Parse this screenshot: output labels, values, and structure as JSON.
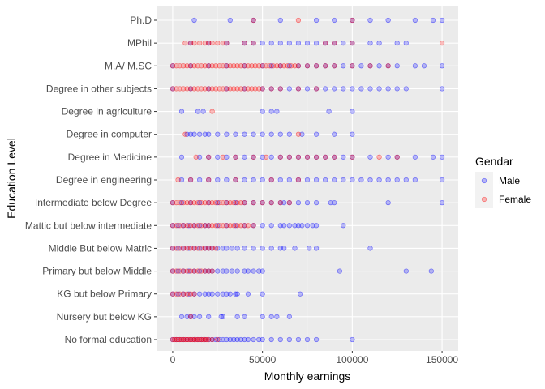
{
  "chart_data": {
    "type": "scatter",
    "title": "",
    "xlabel": "Monthly earnings",
    "ylabel": "Education Level",
    "xlim": [
      -9000,
      159000
    ],
    "x_ticks": [
      0,
      50000,
      100000,
      150000
    ],
    "x_tick_labels": [
      "0",
      "50000",
      "100000",
      "150000"
    ],
    "grid": true,
    "legend_title": "Gendar",
    "legend_position": "right",
    "categories": [
      "No formal education",
      "Nursery but below KG",
      "KG but below Primary",
      "Primary but below Middle",
      "Middle But below Matric",
      "Mattic but below intermediate",
      "Intermediate below Degree",
      "Degree in engineering",
      "Degree in Medicine",
      "Degree in computer",
      "Degree in agriculture",
      "Degree in other subjects",
      "M.A/ M.SC",
      "MPhil",
      "Ph.D"
    ],
    "series": [
      {
        "name": "Male",
        "color": "#0000ff",
        "points": {
          "No formal education": [
            0,
            2000,
            4000,
            6000,
            8000,
            10000,
            12000,
            14000,
            16000,
            18000,
            20000,
            22000,
            24000,
            26000,
            28000,
            30000,
            32000,
            34000,
            36000,
            38000,
            40000,
            42000,
            45000,
            48000,
            50000,
            55000,
            60000,
            65000,
            70000,
            75000,
            80000,
            100000
          ],
          "Nursery but below KG": [
            5000,
            8000,
            10000,
            12000,
            15000,
            20000,
            27000,
            28000,
            36000,
            40000,
            50000,
            55000,
            58000,
            65000
          ],
          "KG but below Primary": [
            0,
            3000,
            6000,
            9000,
            12000,
            15000,
            18000,
            20000,
            22000,
            25000,
            28000,
            30000,
            32000,
            35000,
            36000,
            42000,
            50000,
            71000
          ],
          "Primary but below Middle": [
            0,
            3000,
            6000,
            9000,
            12000,
            15000,
            18000,
            20000,
            22000,
            25000,
            28000,
            30000,
            33000,
            36000,
            40000,
            42000,
            45000,
            48000,
            50000,
            93000,
            130000,
            144000
          ],
          "Middle But below Matric": [
            0,
            3000,
            6000,
            9000,
            12000,
            15000,
            18000,
            20000,
            22000,
            25000,
            28000,
            30000,
            33000,
            36000,
            40000,
            45000,
            50000,
            55000,
            60000,
            62000,
            68000,
            76000,
            80000,
            110000
          ],
          "Mattic but below intermediate": [
            0,
            3000,
            6000,
            9000,
            12000,
            15000,
            18000,
            20000,
            25000,
            30000,
            35000,
            40000,
            45000,
            50000,
            55000,
            60000,
            62000,
            65000,
            68000,
            70000,
            72000,
            75000,
            78000,
            80000,
            95000
          ],
          "Intermediate below Degree": [
            0,
            5000,
            10000,
            15000,
            20000,
            25000,
            30000,
            35000,
            40000,
            45000,
            50000,
            55000,
            60000,
            62000,
            65000,
            70000,
            75000,
            80000,
            88000,
            90000,
            120000,
            150000
          ],
          "Degree in engineering": [
            5000,
            10000,
            15000,
            20000,
            25000,
            30000,
            35000,
            40000,
            45000,
            50000,
            55000,
            60000,
            65000,
            70000,
            75000,
            80000,
            85000,
            90000,
            95000,
            100000,
            105000,
            110000,
            115000,
            120000,
            125000,
            130000,
            135000,
            150000
          ],
          "Degree in Medicine": [
            5000,
            15000,
            20000,
            25000,
            30000,
            35000,
            40000,
            45000,
            50000,
            55000,
            60000,
            65000,
            70000,
            75000,
            80000,
            85000,
            90000,
            95000,
            100000,
            110000,
            120000,
            125000,
            135000,
            145000,
            150000
          ],
          "Degree in computer": [
            8000,
            10000,
            12000,
            15000,
            18000,
            20000,
            25000,
            30000,
            35000,
            40000,
            45000,
            50000,
            55000,
            60000,
            65000,
            72000,
            80000,
            90000,
            100000
          ],
          "Degree in agriculture": [
            5000,
            14000,
            17000,
            50000,
            55000,
            58000,
            87000,
            100000
          ],
          "Degree in other subjects": [
            0,
            10000,
            20000,
            30000,
            40000,
            50000,
            55000,
            60000,
            65000,
            70000,
            75000,
            80000,
            85000,
            90000,
            95000,
            100000,
            105000,
            110000,
            115000,
            120000,
            125000,
            130000,
            150000
          ],
          "M.A/ M.SC": [
            0,
            10000,
            20000,
            30000,
            40000,
            50000,
            55000,
            60000,
            65000,
            70000,
            75000,
            80000,
            85000,
            90000,
            95000,
            100000,
            105000,
            110000,
            115000,
            120000,
            125000,
            135000,
            140000,
            150000
          ],
          "MPhil": [
            10000,
            20000,
            30000,
            40000,
            45000,
            50000,
            55000,
            60000,
            65000,
            70000,
            75000,
            80000,
            85000,
            90000,
            95000,
            100000,
            110000,
            115000,
            125000,
            130000
          ],
          "Ph.D": [
            12000,
            32000,
            45000,
            60000,
            80000,
            90000,
            100000,
            110000,
            120000,
            135000,
            145000,
            150000
          ]
        }
      },
      {
        "name": "Female",
        "color": "#ff0000",
        "points": {
          "No formal education": [
            0,
            1000,
            2000,
            3000,
            4000,
            5000,
            6000,
            7000,
            8000,
            9000,
            10000,
            11000,
            12000,
            13000,
            14000,
            15000,
            16000,
            17000,
            18000,
            19000,
            20000,
            22000,
            25000
          ],
          "Nursery but below KG": [
            10000
          ],
          "KG but below Primary": [
            0,
            2000,
            4000,
            6000,
            8000,
            10000,
            12000
          ],
          "Primary but below Middle": [
            0,
            2000,
            4000,
            6000,
            8000,
            10000,
            12000,
            14000,
            16000,
            18000,
            20000,
            22000
          ],
          "Middle But below Matric": [
            0,
            2000,
            4000,
            6000,
            8000,
            10000,
            12000,
            14000,
            16000,
            18000,
            20000,
            22000,
            24000
          ],
          "Mattic but below intermediate": [
            0,
            2000,
            4000,
            6000,
            8000,
            10000,
            12000,
            14000,
            16000,
            18000,
            20000,
            22000,
            24000,
            26000,
            28000,
            30000,
            32000,
            34000,
            36000,
            38000,
            40000,
            42000,
            45000
          ],
          "Intermediate below Degree": [
            0,
            2000,
            4000,
            6000,
            8000,
            10000,
            12000,
            14000,
            16000,
            18000,
            20000,
            22000,
            24000,
            26000,
            28000,
            30000,
            32000,
            34000,
            36000,
            38000,
            40000,
            45000,
            50000,
            55000,
            60000,
            65000
          ],
          "Degree in engineering": [
            3000,
            10000,
            20000,
            35000,
            55000,
            70000
          ],
          "Degree in Medicine": [
            13000,
            20000,
            28000,
            35000,
            45000,
            52000,
            60000,
            65000,
            70000,
            75000,
            80000,
            85000,
            90000,
            100000,
            115000,
            125000
          ],
          "Degree in computer": [
            7000,
            70000
          ],
          "Degree in agriculture": [
            22000
          ],
          "Degree in other subjects": [
            0,
            2000,
            4000,
            6000,
            8000,
            10000,
            12000,
            14000,
            16000,
            18000,
            20000,
            22000,
            24000,
            26000,
            28000,
            30000,
            32000,
            34000,
            36000,
            38000,
            40000,
            42000,
            44000,
            46000,
            48000,
            50000,
            55000,
            60000,
            70000,
            80000
          ],
          "M.A/ M.SC": [
            0,
            2000,
            4000,
            6000,
            8000,
            10000,
            12000,
            14000,
            16000,
            18000,
            20000,
            22000,
            24000,
            26000,
            28000,
            30000,
            32000,
            34000,
            36000,
            38000,
            40000,
            42000,
            44000,
            46000,
            48000,
            50000,
            52000,
            54000,
            56000,
            58000,
            60000,
            62000,
            64000,
            66000,
            68000,
            70000,
            75000,
            80000,
            85000,
            90000,
            100000,
            110000,
            120000
          ],
          "MPhil": [
            7000,
            10000,
            12000,
            15000,
            18000,
            20000,
            22000,
            25000,
            28000,
            30000,
            40000,
            45000,
            85000,
            90000,
            100000,
            150000
          ],
          "Ph.D": [
            45000,
            70000,
            100000
          ]
        }
      }
    ]
  }
}
